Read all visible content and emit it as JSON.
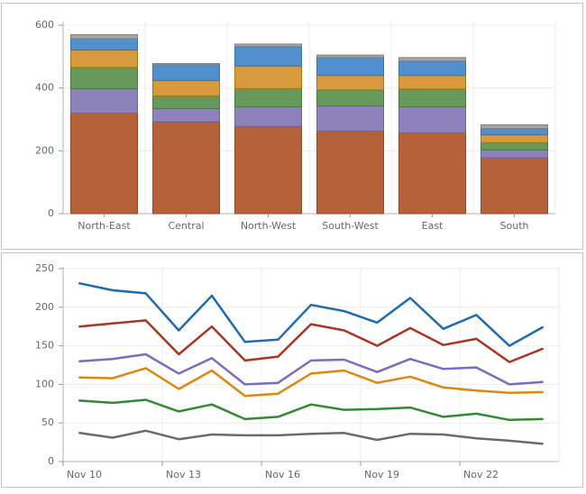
{
  "page": {
    "background": "#ffffff",
    "panel_border": "#c3c3c3"
  },
  "chart_data": [
    {
      "type": "bar",
      "stacked": true,
      "title": "",
      "xlabel": "",
      "ylabel": "",
      "categories": [
        "North-East",
        "Central",
        "North-West",
        "South-West",
        "East",
        "South"
      ],
      "series": [
        {
          "name": "rust",
          "color": "#B5623A",
          "border": "#8F4A28",
          "values": [
            320,
            292,
            278,
            263,
            257,
            178
          ]
        },
        {
          "name": "purple",
          "color": "#8E82BD",
          "border": "#6F63A0",
          "values": [
            78,
            43,
            62,
            80,
            83,
            25
          ]
        },
        {
          "name": "green",
          "color": "#66995A",
          "border": "#49773F",
          "values": [
            68,
            40,
            58,
            51,
            57,
            23
          ]
        },
        {
          "name": "gold",
          "color": "#D79A3F",
          "border": "#AA7712",
          "values": [
            55,
            49,
            72,
            46,
            43,
            25
          ]
        },
        {
          "name": "blue",
          "color": "#528FCE",
          "border": "#3A72AC",
          "values": [
            36,
            50,
            62,
            57,
            46,
            20
          ]
        },
        {
          "name": "gray",
          "color": "#A5A5A5",
          "border": "#7F7F7F",
          "values": [
            13,
            4,
            8,
            8,
            11,
            12
          ]
        }
      ],
      "totals": [
        570,
        478,
        540,
        505,
        497,
        283
      ],
      "ylim": [
        0,
        600
      ],
      "yticks": [
        0,
        200,
        400,
        600
      ],
      "grid": true,
      "legend_position": "none"
    },
    {
      "type": "line",
      "title": "",
      "xlabel": "",
      "ylabel": "",
      "x_point_count": 15,
      "xticks": [
        {
          "index": 0,
          "label": "Nov 10"
        },
        {
          "index": 3,
          "label": "Nov 13"
        },
        {
          "index": 6,
          "label": "Nov 16"
        },
        {
          "index": 9,
          "label": "Nov 19"
        },
        {
          "index": 12,
          "label": "Nov 22"
        }
      ],
      "series": [
        {
          "name": "blue",
          "color": "#1F6BB2",
          "values": [
            231,
            222,
            218,
            170,
            215,
            155,
            158,
            203,
            195,
            180,
            212,
            172,
            190,
            150,
            174
          ]
        },
        {
          "name": "red",
          "color": "#A93620",
          "values": [
            175,
            179,
            183,
            139,
            175,
            131,
            136,
            178,
            170,
            150,
            173,
            151,
            159,
            129,
            146
          ]
        },
        {
          "name": "purple",
          "color": "#7D6BC0",
          "values": [
            130,
            133,
            139,
            114,
            134,
            100,
            102,
            131,
            132,
            116,
            133,
            120,
            122,
            100,
            103
          ]
        },
        {
          "name": "orange",
          "color": "#DE870F",
          "values": [
            109,
            108,
            121,
            94,
            118,
            85,
            88,
            114,
            118,
            102,
            110,
            96,
            92,
            89,
            90
          ]
        },
        {
          "name": "green",
          "color": "#338A33",
          "values": [
            79,
            76,
            80,
            65,
            74,
            55,
            58,
            74,
            67,
            68,
            70,
            58,
            62,
            54,
            55
          ]
        },
        {
          "name": "gray",
          "color": "#6B6B6B",
          "values": [
            37,
            31,
            40,
            29,
            35,
            34,
            34,
            36,
            37,
            28,
            36,
            35,
            30,
            27,
            23
          ]
        }
      ],
      "ylim": [
        0,
        250
      ],
      "yticks": [
        0,
        50,
        100,
        150,
        200,
        250
      ],
      "grid": true,
      "legend_position": "none"
    }
  ]
}
